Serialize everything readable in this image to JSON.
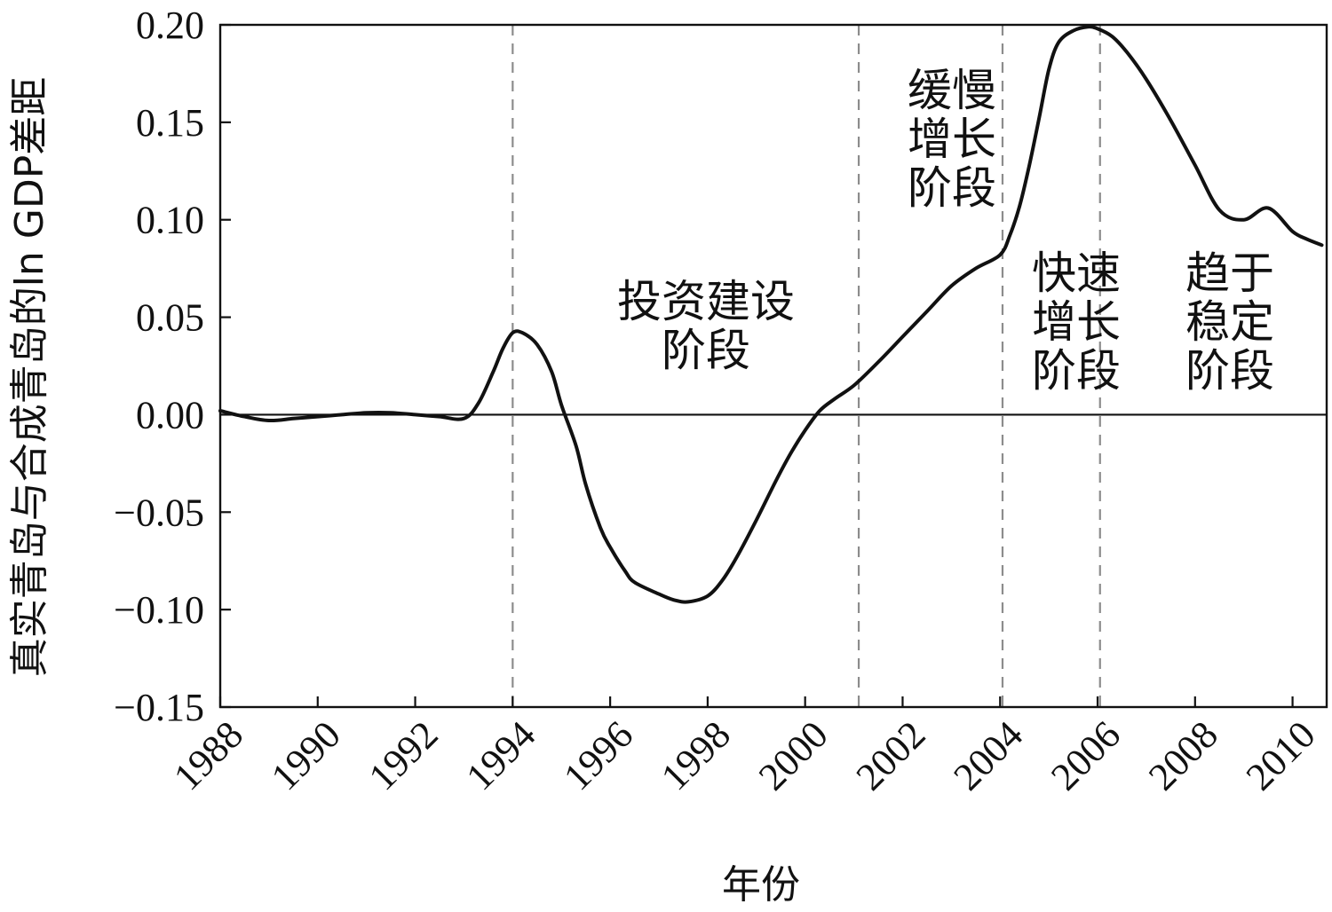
{
  "chart_data": {
    "type": "line",
    "title": "",
    "xlabel": "年份",
    "ylabel": "真实青岛与合成青岛的ln GDP差距",
    "xlim": [
      1988,
      2010.7
    ],
    "ylim": [
      -0.15,
      0.2
    ],
    "x_ticks": [
      "1988",
      "1990",
      "1992",
      "1994",
      "1996",
      "1998",
      "2000",
      "2002",
      "2004",
      "2006",
      "2008",
      "2010"
    ],
    "y_ticks": [
      "0.20",
      "0.15",
      "0.10",
      "0.05",
      "0.00",
      "−0.05",
      "−0.10",
      "−0.15"
    ],
    "reference_line_y": 0,
    "stage_dividers_x": [
      1994,
      2001.1,
      2004.05,
      2006.05
    ],
    "series": [
      {
        "x": [
          1988,
          1988.5,
          1989,
          1989.5,
          1990,
          1990.5,
          1991,
          1991.5,
          1992,
          1992.5,
          1993,
          1993.3,
          1993.6,
          1993.8,
          1994,
          1994.2,
          1994.5,
          1994.8,
          1995,
          1995.3,
          1995.5,
          1995.8,
          1996,
          1996.3,
          1996.5,
          1997,
          1997.3,
          1997.6,
          1998,
          1998.3,
          1998.6,
          1999,
          1999.4,
          1999.7,
          2000,
          2000.3,
          2000.6,
          2001,
          2001.5,
          2002,
          2002.5,
          2003,
          2003.5,
          2004,
          2004.2,
          2004.4,
          2004.6,
          2004.8,
          2005,
          2005.2,
          2005.5,
          2005.8,
          2006,
          2006.3,
          2006.6,
          2007,
          2007.5,
          2008,
          2008.5,
          2009,
          2009.5,
          2010,
          2010.3,
          2010.6
        ],
        "y": [
          0.002,
          -0.001,
          -0.003,
          -0.002,
          -0.001,
          0.0,
          0.001,
          0.001,
          0.0,
          -0.001,
          -0.002,
          0.006,
          0.022,
          0.034,
          0.042,
          0.042,
          0.036,
          0.022,
          0.005,
          -0.016,
          -0.036,
          -0.058,
          -0.068,
          -0.08,
          -0.086,
          -0.092,
          -0.095,
          -0.096,
          -0.093,
          -0.085,
          -0.073,
          -0.054,
          -0.034,
          -0.02,
          -0.008,
          0.002,
          0.008,
          0.015,
          0.027,
          0.04,
          0.053,
          0.066,
          0.075,
          0.082,
          0.092,
          0.107,
          0.128,
          0.152,
          0.177,
          0.191,
          0.197,
          0.199,
          0.198,
          0.194,
          0.186,
          0.172,
          0.151,
          0.128,
          0.105,
          0.1,
          0.106,
          0.094,
          0.09,
          0.087
        ]
      }
    ],
    "annotations": [
      {
        "lines": [
          "投资建设",
          "阶段"
        ]
      },
      {
        "lines": [
          "缓慢",
          "增长",
          "阶段"
        ]
      },
      {
        "lines": [
          "快速",
          "增长",
          "阶段"
        ]
      },
      {
        "lines": [
          "趋于",
          "稳定",
          "阶段"
        ]
      }
    ]
  }
}
